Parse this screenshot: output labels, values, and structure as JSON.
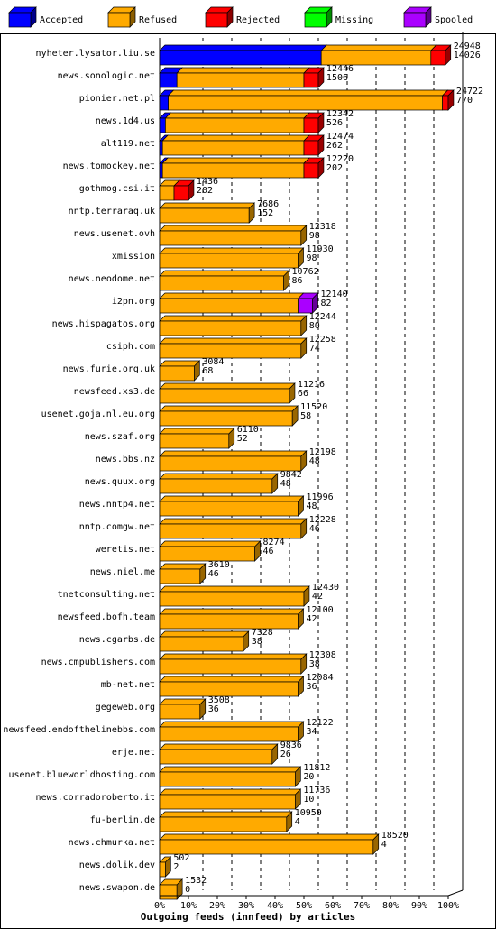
{
  "chart_data": {
    "type": "bar",
    "orientation": "horizontal",
    "stacked": true,
    "title": "Outgoing feeds (innfeed) by articles",
    "legend": {
      "placement": "top",
      "entries": [
        {
          "name": "Accepted",
          "color": "#0000ff"
        },
        {
          "name": "Refused",
          "color": "#ffaa00"
        },
        {
          "name": "Rejected",
          "color": "#ff0000"
        },
        {
          "name": "Missing",
          "color": "#00ff00"
        },
        {
          "name": "Spooled",
          "color": "#aa00ff"
        }
      ]
    },
    "xlim": [
      0,
      100
    ],
    "xticks": [
      "0%",
      "10%",
      "20%",
      "30%",
      "40%",
      "50%",
      "60%",
      "70%",
      "80%",
      "90%",
      "100%"
    ],
    "grid": "vertical-dashed",
    "rows": [
      {
        "host": "nyheter.lysator.liu.se",
        "top": "24948",
        "bottom": "14026",
        "accepted": 56,
        "refused": 38,
        "rejected": 5,
        "spooled": 0
      },
      {
        "host": "news.sonologic.net",
        "top": "12446",
        "bottom": "1506",
        "accepted": 6,
        "refused": 44,
        "rejected": 5,
        "spooled": 0
      },
      {
        "host": "pionier.net.pl",
        "top": "24722",
        "bottom": "770",
        "accepted": 3,
        "refused": 95,
        "rejected": 2,
        "spooled": 0
      },
      {
        "host": "news.1d4.us",
        "top": "12342",
        "bottom": "526",
        "accepted": 2,
        "refused": 48,
        "rejected": 5,
        "spooled": 0
      },
      {
        "host": "alt119.net",
        "top": "12474",
        "bottom": "262",
        "accepted": 1,
        "refused": 49,
        "rejected": 5,
        "spooled": 0
      },
      {
        "host": "news.tomockey.net",
        "top": "12220",
        "bottom": "202",
        "accepted": 1,
        "refused": 49,
        "rejected": 5,
        "spooled": 0
      },
      {
        "host": "gothmog.csi.it",
        "top": "1436",
        "bottom": "202",
        "accepted": 0,
        "refused": 5,
        "rejected": 5,
        "spooled": 0
      },
      {
        "host": "nntp.terraraq.uk",
        "top": "7686",
        "bottom": "152",
        "accepted": 0,
        "refused": 31,
        "rejected": 0,
        "spooled": 0
      },
      {
        "host": "news.usenet.ovh",
        "top": "12318",
        "bottom": "98",
        "accepted": 0,
        "refused": 49,
        "rejected": 0,
        "spooled": 0
      },
      {
        "host": "xmission",
        "top": "11930",
        "bottom": "98",
        "accepted": 0,
        "refused": 48,
        "rejected": 0,
        "spooled": 0
      },
      {
        "host": "news.neodome.net",
        "top": "10762",
        "bottom": "86",
        "accepted": 0,
        "refused": 43,
        "rejected": 0,
        "spooled": 0
      },
      {
        "host": "i2pn.org",
        "top": "12140",
        "bottom": "82",
        "accepted": 0,
        "refused": 48,
        "rejected": 0,
        "spooled": 5
      },
      {
        "host": "news.hispagatos.org",
        "top": "12244",
        "bottom": "80",
        "accepted": 0,
        "refused": 49,
        "rejected": 0,
        "spooled": 0
      },
      {
        "host": "csiph.com",
        "top": "12258",
        "bottom": "74",
        "accepted": 0,
        "refused": 49,
        "rejected": 0,
        "spooled": 0
      },
      {
        "host": "news.furie.org.uk",
        "top": "3084",
        "bottom": "68",
        "accepted": 0,
        "refused": 12,
        "rejected": 0,
        "spooled": 0
      },
      {
        "host": "newsfeed.xs3.de",
        "top": "11216",
        "bottom": "66",
        "accepted": 0,
        "refused": 45,
        "rejected": 0,
        "spooled": 0
      },
      {
        "host": "usenet.goja.nl.eu.org",
        "top": "11520",
        "bottom": "58",
        "accepted": 0,
        "refused": 46,
        "rejected": 0,
        "spooled": 0
      },
      {
        "host": "news.szaf.org",
        "top": "6110",
        "bottom": "52",
        "accepted": 0,
        "refused": 24,
        "rejected": 0,
        "spooled": 0
      },
      {
        "host": "news.bbs.nz",
        "top": "12198",
        "bottom": "48",
        "accepted": 0,
        "refused": 49,
        "rejected": 0,
        "spooled": 0
      },
      {
        "host": "news.quux.org",
        "top": "9842",
        "bottom": "48",
        "accepted": 0,
        "refused": 39,
        "rejected": 0,
        "spooled": 0
      },
      {
        "host": "news.nntp4.net",
        "top": "11996",
        "bottom": "48",
        "accepted": 0,
        "refused": 48,
        "rejected": 0,
        "spooled": 0
      },
      {
        "host": "nntp.comgw.net",
        "top": "12228",
        "bottom": "46",
        "accepted": 0,
        "refused": 49,
        "rejected": 0,
        "spooled": 0
      },
      {
        "host": "weretis.net",
        "top": "8274",
        "bottom": "46",
        "accepted": 0,
        "refused": 33,
        "rejected": 0,
        "spooled": 0
      },
      {
        "host": "news.niel.me",
        "top": "3610",
        "bottom": "46",
        "accepted": 0,
        "refused": 14,
        "rejected": 0,
        "spooled": 0
      },
      {
        "host": "tnetconsulting.net",
        "top": "12430",
        "bottom": "42",
        "accepted": 0,
        "refused": 50,
        "rejected": 0,
        "spooled": 0
      },
      {
        "host": "newsfeed.bofh.team",
        "top": "12100",
        "bottom": "42",
        "accepted": 0,
        "refused": 48,
        "rejected": 0,
        "spooled": 0
      },
      {
        "host": "news.cgarbs.de",
        "top": "7328",
        "bottom": "38",
        "accepted": 0,
        "refused": 29,
        "rejected": 0,
        "spooled": 0
      },
      {
        "host": "news.cmpublishers.com",
        "top": "12308",
        "bottom": "38",
        "accepted": 0,
        "refused": 49,
        "rejected": 0,
        "spooled": 0
      },
      {
        "host": "mb-net.net",
        "top": "12084",
        "bottom": "36",
        "accepted": 0,
        "refused": 48,
        "rejected": 0,
        "spooled": 0
      },
      {
        "host": "gegeweb.org",
        "top": "3508",
        "bottom": "36",
        "accepted": 0,
        "refused": 14,
        "rejected": 0,
        "spooled": 0
      },
      {
        "host": "newsfeed.endofthelinebbs.com",
        "top": "12122",
        "bottom": "34",
        "accepted": 0,
        "refused": 48,
        "rejected": 0,
        "spooled": 0
      },
      {
        "host": "erje.net",
        "top": "9836",
        "bottom": "26",
        "accepted": 0,
        "refused": 39,
        "rejected": 0,
        "spooled": 0
      },
      {
        "host": "usenet.blueworldhosting.com",
        "top": "11812",
        "bottom": "20",
        "accepted": 0,
        "refused": 47,
        "rejected": 0,
        "spooled": 0
      },
      {
        "host": "news.corradoroberto.it",
        "top": "11736",
        "bottom": "10",
        "accepted": 0,
        "refused": 47,
        "rejected": 0,
        "spooled": 0
      },
      {
        "host": "fu-berlin.de",
        "top": "10950",
        "bottom": "4",
        "accepted": 0,
        "refused": 44,
        "rejected": 0,
        "spooled": 0
      },
      {
        "host": "news.chmurka.net",
        "top": "18520",
        "bottom": "4",
        "accepted": 0,
        "refused": 74,
        "rejected": 0,
        "spooled": 0
      },
      {
        "host": "news.dolik.dev",
        "top": "502",
        "bottom": "2",
        "accepted": 0,
        "refused": 2,
        "rejected": 0,
        "spooled": 0
      },
      {
        "host": "news.swapon.de",
        "top": "1532",
        "bottom": "0",
        "accepted": 0,
        "refused": 6,
        "rejected": 0,
        "spooled": 0
      }
    ]
  }
}
